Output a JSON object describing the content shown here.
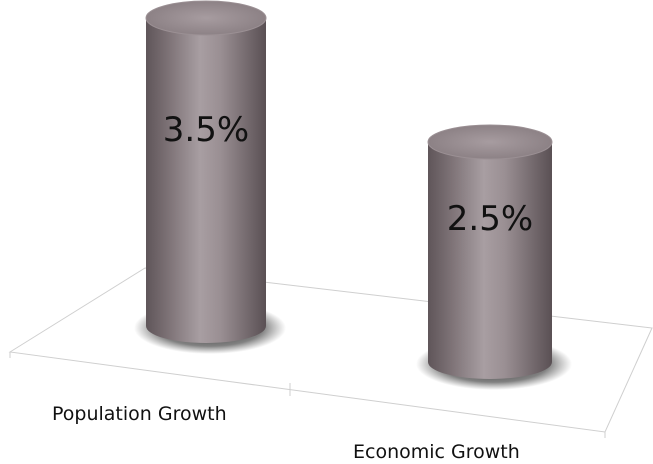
{
  "chart_data": {
    "type": "bar",
    "style": "3d-cylinder",
    "categories": [
      "Population Growth",
      "Economic Growth"
    ],
    "values": [
      3.5,
      2.5
    ],
    "value_labels": [
      "3.5%",
      "2.5%"
    ],
    "title": "",
    "xlabel": "",
    "ylabel": "",
    "ylim": [
      0,
      4
    ],
    "grid": false,
    "legend": "none",
    "colors": {
      "bar": "#8d8185",
      "bar_light": "#b7acb0",
      "bar_dark": "#5c5256",
      "top": "#a59a9e",
      "shadow": "#2a2a2a",
      "floor": "#c8c8c8"
    }
  }
}
